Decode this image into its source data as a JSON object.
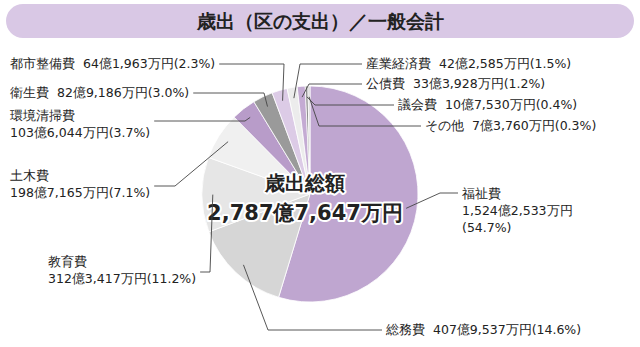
{
  "chart_data": {
    "type": "pie",
    "title": "歳出（区の支出）／一般会計",
    "center_title": "歳出総額",
    "total": "2,787億7,647万円",
    "categories": [
      "福祉費",
      "総務費",
      "教育費",
      "土木費",
      "環境清掃費",
      "衛生費",
      "都市整備費",
      "産業経済費",
      "公債費",
      "議会費",
      "その他"
    ],
    "values": [
      54.7,
      14.6,
      11.2,
      7.1,
      3.7,
      3.0,
      2.3,
      1.5,
      1.2,
      0.4,
      0.3
    ],
    "value_labels": [
      "(54.7%)",
      "(14.6%)",
      "(11.2%)",
      "(7.1%)",
      "(3.7%)",
      "(3.0%)",
      "(2.3%)",
      "(1.5%)",
      "(1.2%)",
      "(0.4%)",
      "(0.3%)"
    ],
    "amounts": [
      "1,524億2,533万円",
      "407億9,537万円",
      "312億3,417万円",
      "198億7,165万円",
      "103億6,044万円",
      "82億9,186万円",
      "64億1,963万円",
      "42億2,585万円",
      "33億3,928万円",
      "10億7,530万円",
      "7億3,760万円"
    ],
    "colors": [
      "#bfa6d0",
      "#d6d6d6",
      "#e6e6e6",
      "#f0f0f0",
      "#b89cc9",
      "#9a9a9a",
      "#dccbe6",
      "#ececec",
      "#c4abd3",
      "#8c8c8c",
      "#d0d0d0"
    ],
    "data_labels": true
  }
}
